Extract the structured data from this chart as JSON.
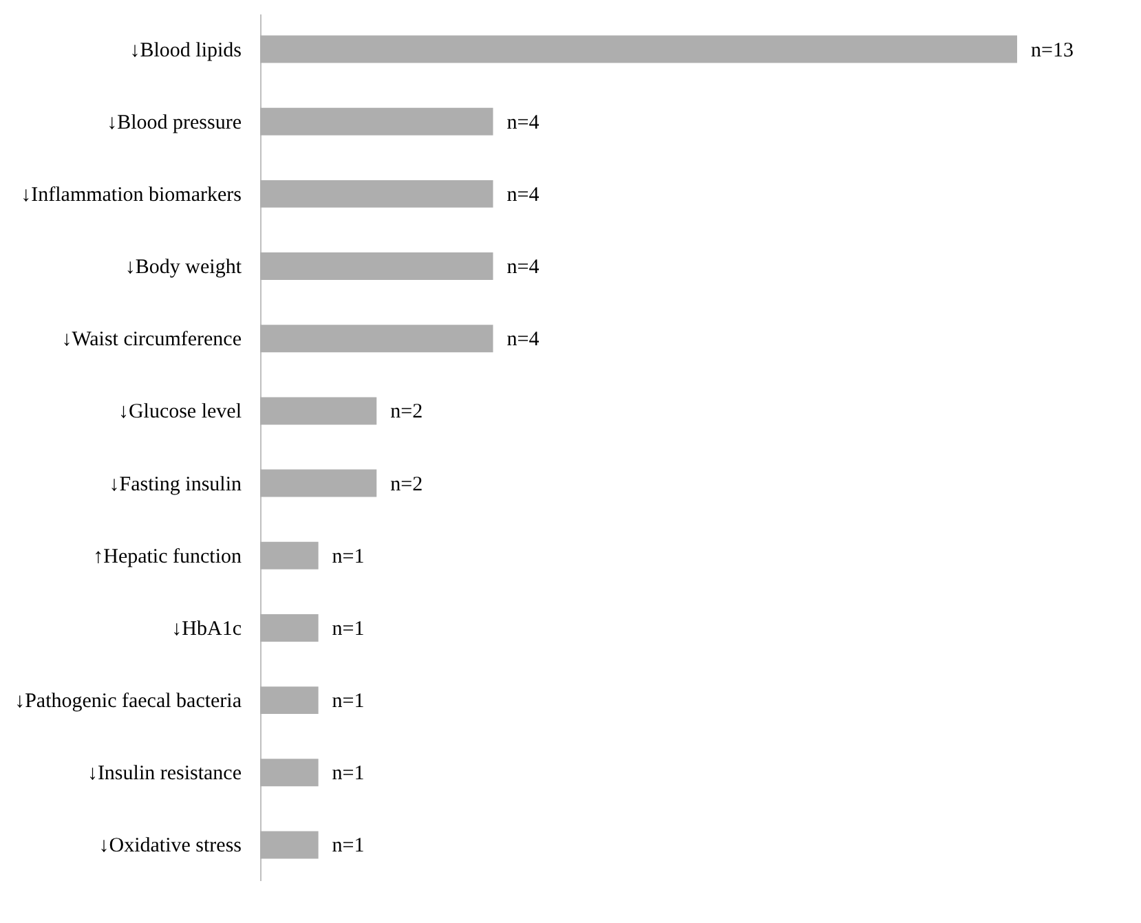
{
  "chart_data": {
    "type": "bar",
    "orientation": "horizontal",
    "categories": [
      "↓Blood lipids",
      "↓Blood pressure",
      "↓Inflammation biomarkers",
      "↓Body weight",
      "↓Waist circumference",
      "↓Glucose level",
      "↓Fasting insulin",
      "↑Hepatic function",
      "↓HbA1c",
      "↓Pathogenic faecal bacteria",
      "↓Insulin resistance",
      "↓Oxidative stress"
    ],
    "values": [
      13,
      4,
      4,
      4,
      4,
      2,
      2,
      1,
      1,
      1,
      1,
      1
    ],
    "value_labels": [
      "n=13",
      "n=4",
      "n=4",
      "n=4",
      "n=4",
      "n=2",
      "n=2",
      "n=1",
      "n=1",
      "n=1",
      "n=1",
      "n=1"
    ],
    "color": "#aeaeae",
    "grid": false,
    "tick_labels": "y"
  }
}
